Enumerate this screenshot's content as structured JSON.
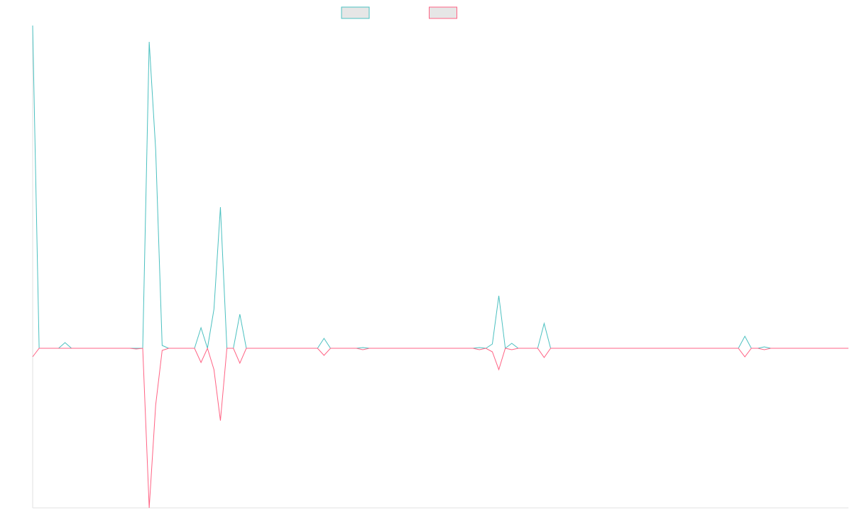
{
  "chart_data": {
    "type": "line",
    "ylim": [
      -225,
      455
    ],
    "series": [
      {
        "color": "#4bc0c0",
        "values": [
          455,
          0,
          0,
          0,
          0,
          8,
          0,
          0,
          0,
          0,
          0,
          0,
          0,
          0,
          0,
          0,
          0,
          0,
          432,
          280,
          4,
          0,
          0,
          0,
          0,
          0,
          29,
          0,
          55,
          199,
          0,
          0,
          48,
          0,
          0,
          0,
          0,
          0,
          0,
          0,
          0,
          0,
          0,
          0,
          0,
          14,
          0,
          0,
          0,
          0,
          0,
          1,
          0,
          0,
          0,
          0,
          0,
          0,
          0,
          0,
          0,
          0,
          0,
          0,
          0,
          0,
          0,
          0,
          0,
          1,
          0,
          6,
          74,
          0,
          7,
          0,
          0,
          0,
          0,
          35,
          0,
          0,
          0,
          0,
          0,
          0,
          0,
          0,
          0,
          0,
          0,
          0,
          0,
          0,
          0,
          0,
          0,
          0,
          0,
          0,
          0,
          0,
          0,
          0,
          0,
          0,
          0,
          0,
          0,
          0,
          17,
          0,
          0,
          2,
          0,
          0,
          0,
          0,
          0,
          0,
          0,
          0,
          0,
          0,
          0,
          0,
          0
        ]
      },
      {
        "color": "#ff6384",
        "values": [
          -12,
          0,
          0,
          0,
          0,
          0,
          0,
          0,
          0,
          0,
          0,
          0,
          0,
          0,
          0,
          0,
          -1,
          0,
          -225,
          -80,
          -3,
          0,
          0,
          0,
          0,
          0,
          -20,
          0,
          -30,
          -102,
          0,
          0,
          -21,
          0,
          0,
          0,
          0,
          0,
          0,
          0,
          0,
          0,
          0,
          0,
          0,
          -10,
          0,
          0,
          0,
          0,
          0,
          -2,
          0,
          0,
          0,
          0,
          0,
          0,
          0,
          0,
          0,
          0,
          0,
          0,
          0,
          0,
          0,
          0,
          0,
          -2,
          0,
          -5,
          -30,
          0,
          -2,
          0,
          0,
          0,
          0,
          -13,
          0,
          0,
          0,
          0,
          0,
          0,
          0,
          0,
          0,
          0,
          0,
          0,
          0,
          0,
          0,
          0,
          0,
          0,
          0,
          0,
          0,
          0,
          0,
          0,
          0,
          0,
          0,
          0,
          0,
          0,
          -12,
          0,
          0,
          -2,
          0,
          0,
          0,
          0,
          0,
          0,
          0,
          0,
          0,
          0,
          0,
          0,
          0
        ]
      }
    ]
  }
}
